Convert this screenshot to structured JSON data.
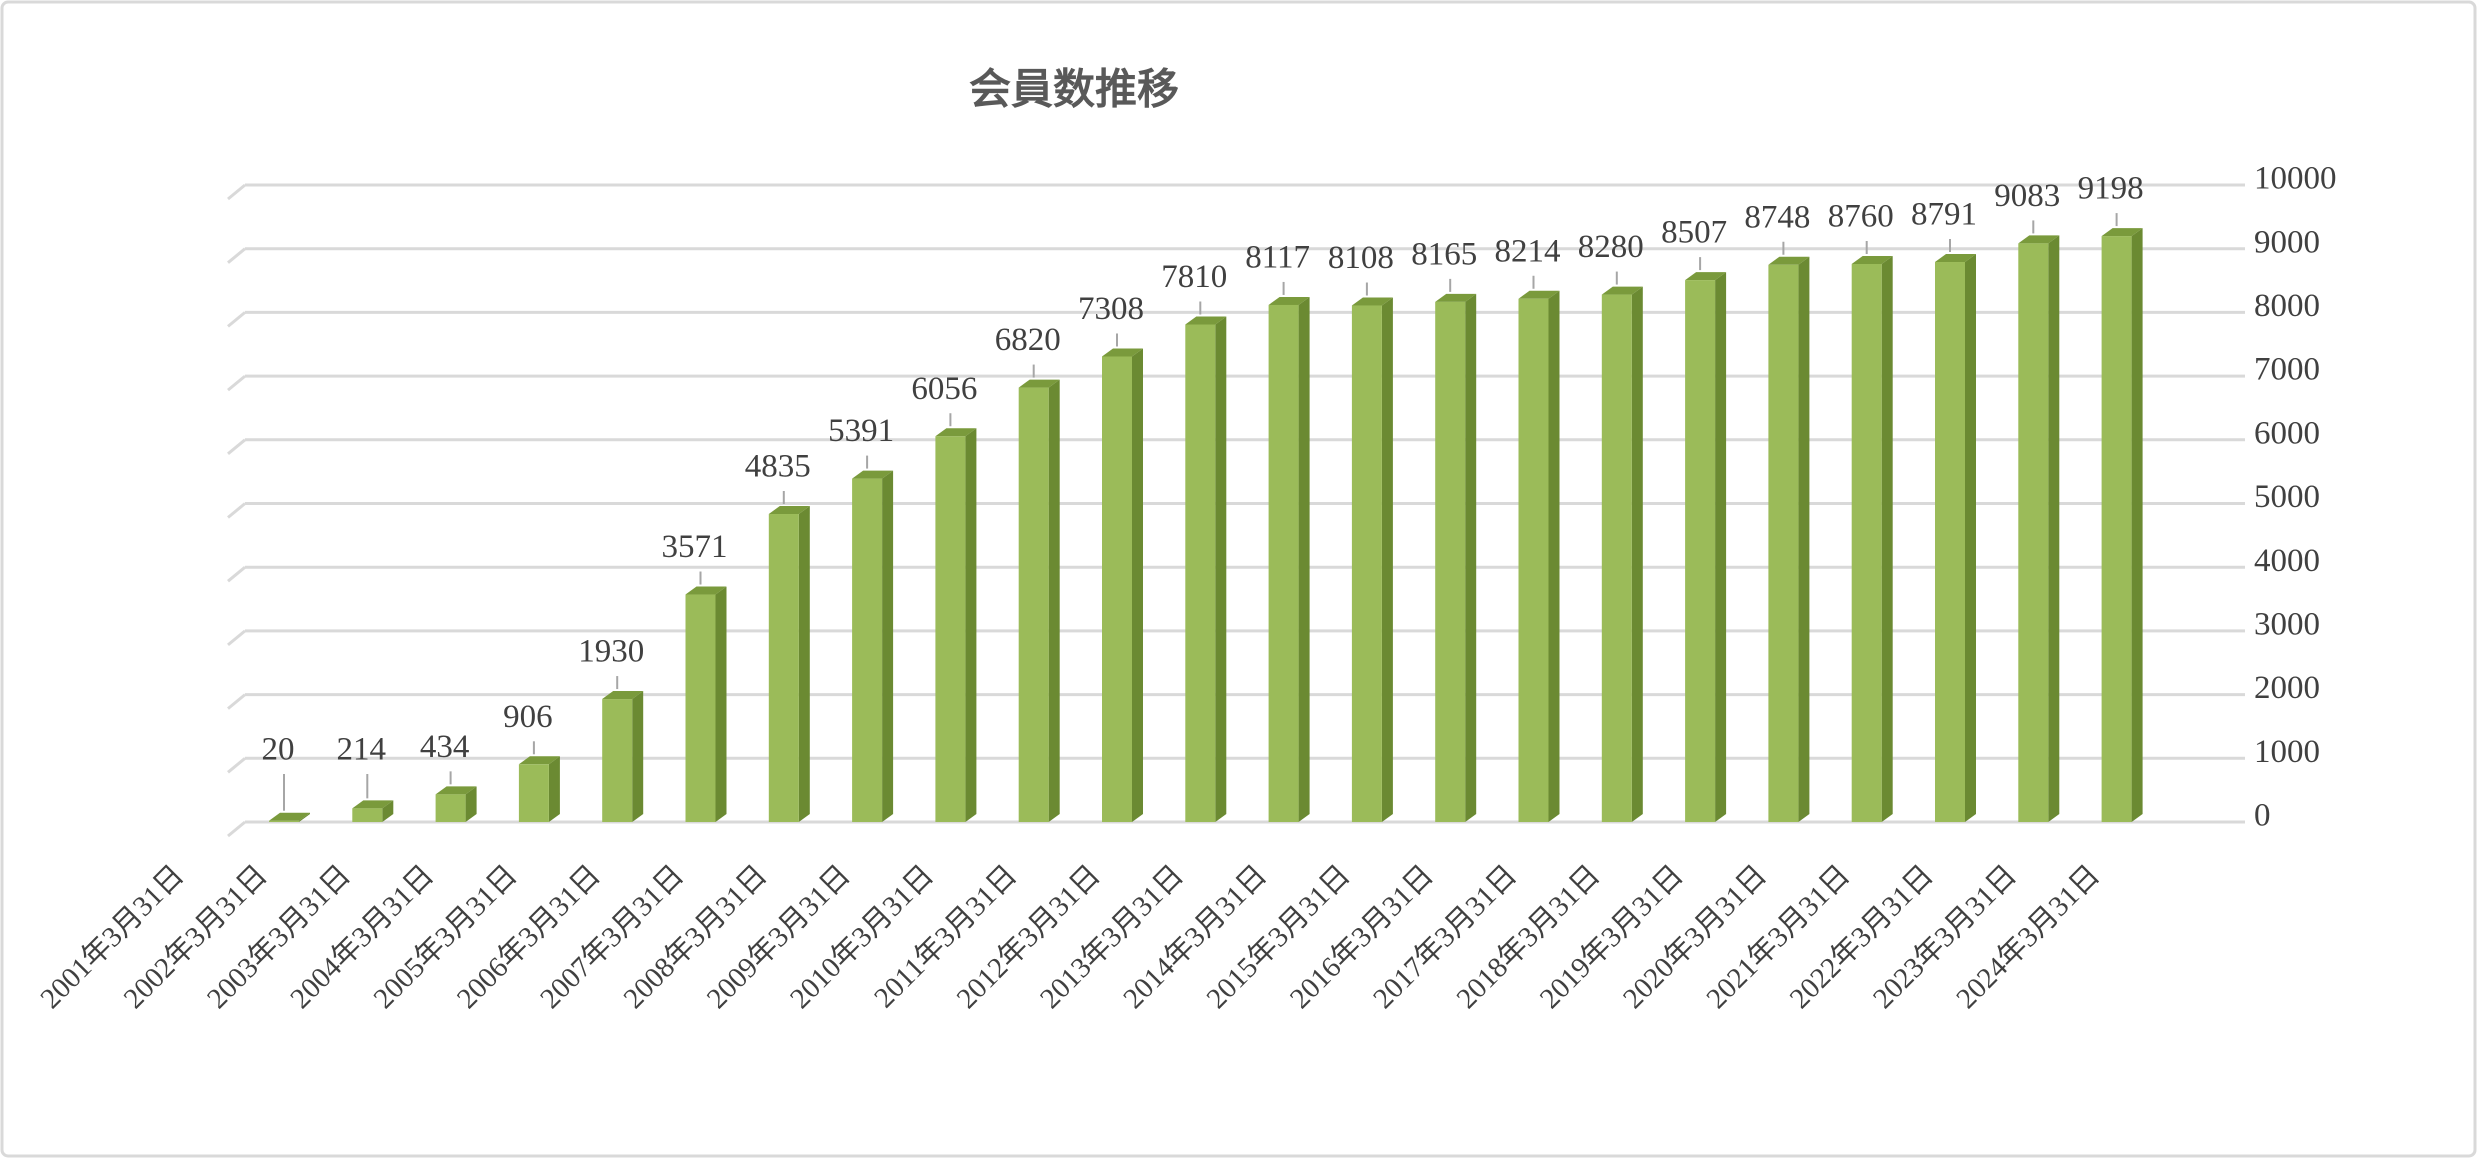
{
  "chart_data": {
    "type": "bar3d",
    "title": "会員数推移",
    "categories": [
      "2001年3月31日",
      "2002年3月31日",
      "2003年3月31日",
      "2004年3月31日",
      "2005年3月31日",
      "2006年3月31日",
      "2007年3月31日",
      "2008年3月31日",
      "2009年3月31日",
      "2010年3月31日",
      "2011年3月31日",
      "2012年3月31日",
      "2013年3月31日",
      "2014年3月31日",
      "2015年3月31日",
      "2016年3月31日",
      "2017年3月31日",
      "2018年3月31日",
      "2019年3月31日",
      "2020年3月31日",
      "2021年3月31日",
      "2022年3月31日",
      "2023年3月31日",
      "2024年3月31日"
    ],
    "values": [
      null,
      20,
      214,
      434,
      906,
      1930,
      3571,
      4835,
      5391,
      6056,
      6820,
      7308,
      7810,
      8117,
      8108,
      8165,
      8214,
      8280,
      8507,
      8748,
      8760,
      8791,
      9083,
      9198
    ],
    "color": "#9bbb59",
    "ylim": [
      0,
      10000
    ],
    "yticks": [
      0,
      1000,
      2000,
      3000,
      4000,
      5000,
      6000,
      7000,
      8000,
      9000,
      10000
    ],
    "grid": true
  }
}
